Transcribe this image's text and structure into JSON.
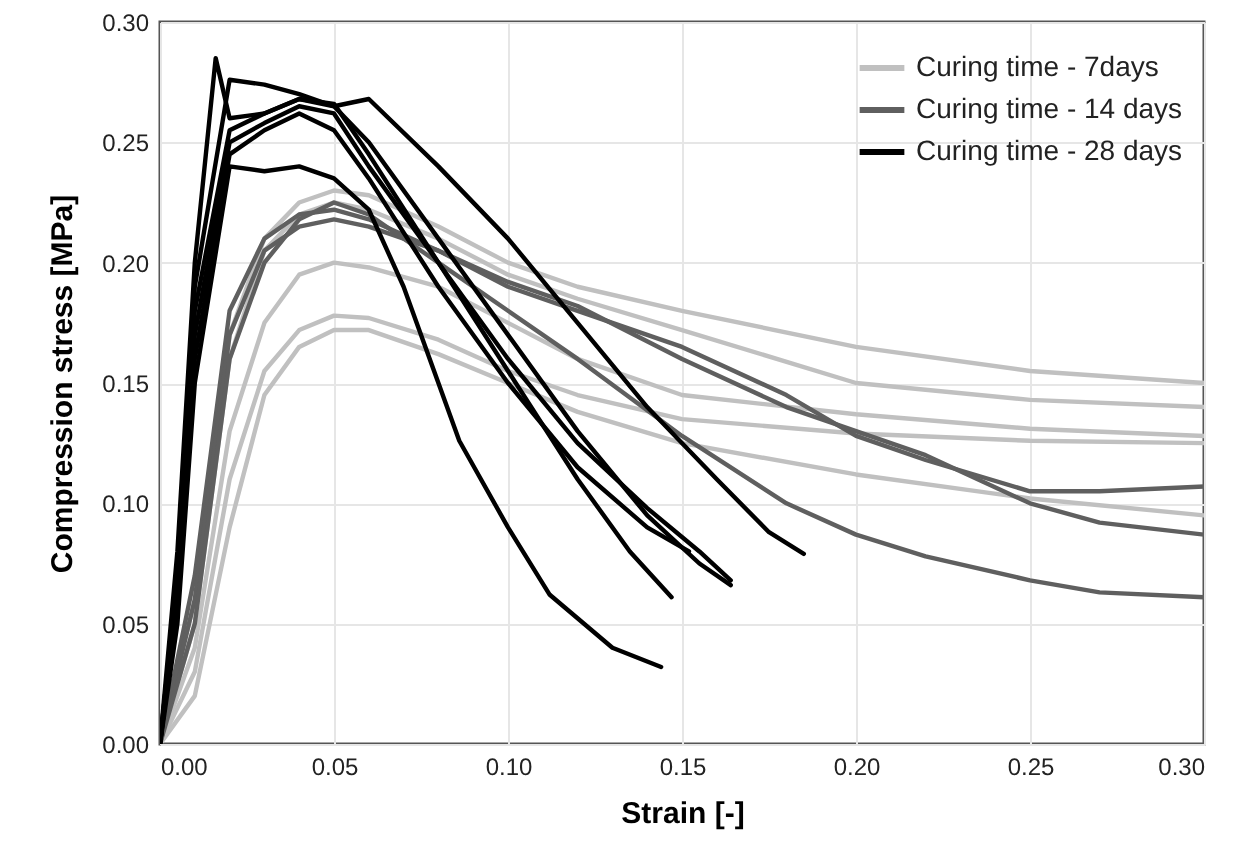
{
  "chart_data": {
    "type": "line",
    "xlabel": "Strain [-]",
    "ylabel": "Compression stress [MPa]",
    "xlim": [
      0,
      0.3
    ],
    "ylim": [
      0,
      0.3
    ],
    "xticks": [
      {
        "value": 0,
        "label": "0.00"
      },
      {
        "value": 0.05,
        "label": "0.05"
      },
      {
        "value": 0.1,
        "label": "0.10"
      },
      {
        "value": 0.15,
        "label": "0.15"
      },
      {
        "value": 0.2,
        "label": "0.20"
      },
      {
        "value": 0.25,
        "label": "0.25"
      },
      {
        "value": 0.3,
        "label": "0.30"
      }
    ],
    "yticks": [
      {
        "value": 0,
        "label": "0.00"
      },
      {
        "value": 0.05,
        "label": "0.05"
      },
      {
        "value": 0.1,
        "label": "0.10"
      },
      {
        "value": 0.15,
        "label": "0.15"
      },
      {
        "value": 0.2,
        "label": "0.20"
      },
      {
        "value": 0.25,
        "label": "0.25"
      },
      {
        "value": 0.3,
        "label": "0.30"
      }
    ],
    "grid": true,
    "legend": "top right",
    "marker": "none",
    "line_style": "solid",
    "series": [
      {
        "name": "Curing time - 7days",
        "color": "#c0c0c0",
        "x": [
          0,
          0.01,
          0.02,
          0.03,
          0.04,
          0.05,
          0.06,
          0.08,
          0.1,
          0.12,
          0.15,
          0.2,
          0.25,
          0.3
        ],
        "values": [
          0,
          0.06,
          0.17,
          0.21,
          0.225,
          0.23,
          0.228,
          0.215,
          0.2,
          0.19,
          0.18,
          0.165,
          0.155,
          0.15
        ]
      },
      {
        "color": "#c0c0c0",
        "x": [
          0,
          0.01,
          0.02,
          0.03,
          0.04,
          0.05,
          0.06,
          0.08,
          0.1,
          0.12,
          0.15,
          0.2,
          0.25,
          0.3
        ],
        "values": [
          0,
          0.05,
          0.16,
          0.205,
          0.22,
          0.225,
          0.222,
          0.21,
          0.195,
          0.185,
          0.172,
          0.15,
          0.143,
          0.14
        ]
      },
      {
        "color": "#c0c0c0",
        "x": [
          0,
          0.01,
          0.02,
          0.03,
          0.04,
          0.05,
          0.06,
          0.08,
          0.1,
          0.12,
          0.15,
          0.2,
          0.25,
          0.3
        ],
        "values": [
          0,
          0.04,
          0.13,
          0.175,
          0.195,
          0.2,
          0.198,
          0.19,
          0.175,
          0.16,
          0.145,
          0.137,
          0.131,
          0.128
        ]
      },
      {
        "color": "#c0c0c0",
        "x": [
          0,
          0.01,
          0.02,
          0.03,
          0.04,
          0.05,
          0.06,
          0.08,
          0.1,
          0.12,
          0.15,
          0.2,
          0.25,
          0.3
        ],
        "values": [
          0,
          0.03,
          0.11,
          0.155,
          0.172,
          0.178,
          0.177,
          0.168,
          0.155,
          0.145,
          0.135,
          0.129,
          0.126,
          0.125
        ]
      },
      {
        "color": "#c0c0c0",
        "x": [
          0,
          0.01,
          0.02,
          0.03,
          0.04,
          0.05,
          0.06,
          0.08,
          0.1,
          0.12,
          0.15,
          0.2,
          0.25,
          0.3
        ],
        "values": [
          0,
          0.02,
          0.09,
          0.145,
          0.165,
          0.172,
          0.172,
          0.162,
          0.15,
          0.138,
          0.125,
          0.112,
          0.102,
          0.095
        ]
      },
      {
        "name": "Curing time - 14 days",
        "color": "#5f5f5f",
        "x": [
          0,
          0.01,
          0.02,
          0.03,
          0.04,
          0.05,
          0.06,
          0.08,
          0.1,
          0.12,
          0.15,
          0.18,
          0.2,
          0.22,
          0.25,
          0.27,
          0.3
        ],
        "values": [
          0,
          0.07,
          0.18,
          0.21,
          0.22,
          0.222,
          0.218,
          0.205,
          0.19,
          0.18,
          0.165,
          0.145,
          0.128,
          0.118,
          0.105,
          0.105,
          0.107
        ]
      },
      {
        "color": "#5f5f5f",
        "x": [
          0,
          0.01,
          0.02,
          0.03,
          0.04,
          0.05,
          0.06,
          0.08,
          0.1,
          0.12,
          0.15,
          0.18,
          0.2,
          0.22,
          0.25,
          0.27,
          0.3
        ],
        "values": [
          0,
          0.06,
          0.17,
          0.205,
          0.215,
          0.218,
          0.215,
          0.205,
          0.192,
          0.182,
          0.16,
          0.14,
          0.13,
          0.12,
          0.1,
          0.092,
          0.087
        ]
      },
      {
        "color": "#5f5f5f",
        "x": [
          0,
          0.01,
          0.02,
          0.03,
          0.04,
          0.05,
          0.06,
          0.08,
          0.1,
          0.12,
          0.15,
          0.18,
          0.2,
          0.22,
          0.25,
          0.27,
          0.3
        ],
        "values": [
          0,
          0.05,
          0.16,
          0.2,
          0.218,
          0.225,
          0.22,
          0.2,
          0.18,
          0.16,
          0.128,
          0.1,
          0.087,
          0.078,
          0.068,
          0.063,
          0.061
        ]
      },
      {
        "name": "Curing time - 28 days",
        "color": "#000000",
        "x": [
          0,
          0.005,
          0.01,
          0.016,
          0.02,
          0.03,
          0.04,
          0.05,
          0.06,
          0.08,
          0.1,
          0.12,
          0.14,
          0.155,
          0.164
        ],
        "values": [
          0,
          0.08,
          0.2,
          0.285,
          0.26,
          0.262,
          0.268,
          0.265,
          0.25,
          0.21,
          0.17,
          0.13,
          0.095,
          0.075,
          0.066
        ]
      },
      {
        "color": "#000000",
        "x": [
          0,
          0.005,
          0.01,
          0.02,
          0.03,
          0.04,
          0.05,
          0.06,
          0.08,
          0.1,
          0.12,
          0.14,
          0.16,
          0.175,
          0.185
        ],
        "values": [
          0,
          0.07,
          0.19,
          0.276,
          0.274,
          0.27,
          0.265,
          0.268,
          0.24,
          0.21,
          0.175,
          0.14,
          0.11,
          0.088,
          0.079
        ]
      },
      {
        "color": "#000000",
        "x": [
          0,
          0.005,
          0.01,
          0.02,
          0.03,
          0.04,
          0.05,
          0.06,
          0.08,
          0.1,
          0.12,
          0.135,
          0.147
        ],
        "values": [
          0,
          0.07,
          0.18,
          0.255,
          0.262,
          0.268,
          0.266,
          0.245,
          0.2,
          0.155,
          0.11,
          0.08,
          0.061
        ]
      },
      {
        "color": "#000000",
        "x": [
          0,
          0.005,
          0.01,
          0.02,
          0.03,
          0.04,
          0.05,
          0.06,
          0.08,
          0.1,
          0.12,
          0.14,
          0.155,
          0.164
        ],
        "values": [
          0,
          0.06,
          0.17,
          0.25,
          0.258,
          0.265,
          0.262,
          0.24,
          0.2,
          0.16,
          0.125,
          0.098,
          0.08,
          0.068
        ]
      },
      {
        "color": "#000000",
        "x": [
          0,
          0.005,
          0.01,
          0.02,
          0.03,
          0.04,
          0.05,
          0.06,
          0.08,
          0.1,
          0.12,
          0.14,
          0.152
        ],
        "values": [
          0,
          0.06,
          0.16,
          0.245,
          0.255,
          0.262,
          0.255,
          0.235,
          0.19,
          0.15,
          0.115,
          0.09,
          0.08
        ]
      },
      {
        "color": "#000000",
        "x": [
          0,
          0.005,
          0.01,
          0.02,
          0.03,
          0.04,
          0.05,
          0.06,
          0.07,
          0.086,
          0.1,
          0.112,
          0.13,
          0.144
        ],
        "values": [
          0,
          0.05,
          0.15,
          0.24,
          0.238,
          0.24,
          0.235,
          0.222,
          0.19,
          0.126,
          0.09,
          0.062,
          0.04,
          0.032
        ]
      }
    ]
  }
}
